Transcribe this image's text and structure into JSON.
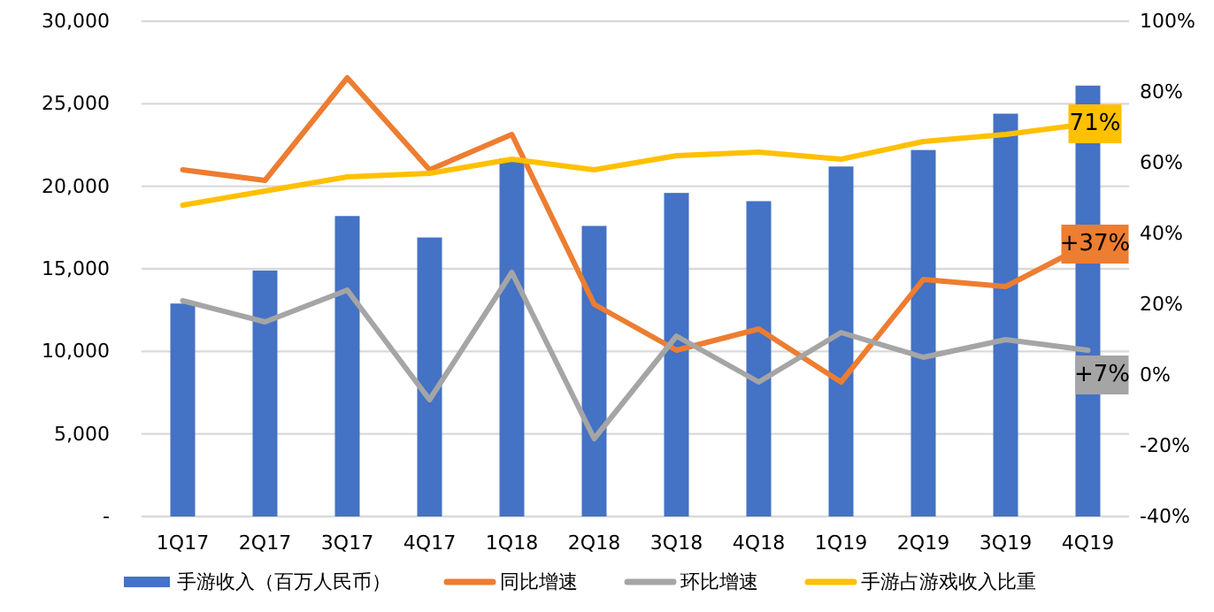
{
  "chart_data": {
    "type": "bar",
    "categories": [
      "1Q17",
      "2Q17",
      "3Q17",
      "4Q17",
      "1Q18",
      "2Q18",
      "3Q18",
      "4Q18",
      "1Q19",
      "2Q19",
      "3Q19",
      "4Q19"
    ],
    "series": [
      {
        "name": "手游收入（百万人民币）",
        "color": "#4472c4",
        "values": [
          12900,
          14900,
          18200,
          16900,
          21700,
          17600,
          19600,
          19100,
          21200,
          22200,
          24400,
          26100
        ]
      },
      {
        "name": "同比增速",
        "type": "line",
        "axis": "y2",
        "color": "#ed7d31",
        "values": [
          58,
          55,
          84,
          58,
          68,
          20,
          7,
          13,
          -2,
          27,
          25,
          37
        ],
        "value_labels": [
          null,
          null,
          null,
          null,
          null,
          null,
          null,
          null,
          null,
          null,
          null,
          "+37%"
        ]
      },
      {
        "name": "环比增速",
        "type": "line",
        "axis": "y2",
        "color": "#a5a5a5",
        "values": [
          21,
          15,
          24,
          -7,
          29,
          -18,
          11,
          -2,
          12,
          5,
          10,
          7
        ],
        "value_labels": [
          null,
          null,
          null,
          null,
          null,
          null,
          null,
          null,
          null,
          null,
          null,
          "+7%"
        ]
      },
      {
        "name": "手游占游戏收入比重",
        "type": "line",
        "axis": "y2",
        "color": "#ffc000",
        "values": [
          48,
          52,
          56,
          57,
          61,
          58,
          62,
          63,
          61,
          66,
          68,
          71
        ],
        "value_labels": [
          null,
          null,
          null,
          null,
          null,
          null,
          null,
          null,
          null,
          null,
          null,
          "71%"
        ]
      }
    ],
    "ylim": [
      0,
      30000
    ],
    "yticks": [
      {
        "value": 0,
        "label": "-"
      },
      {
        "value": 5000,
        "label": "5,000"
      },
      {
        "value": 10000,
        "label": "10,000"
      },
      {
        "value": 15000,
        "label": "15,000"
      },
      {
        "value": 20000,
        "label": "20,000"
      },
      {
        "value": 25000,
        "label": "25,000"
      },
      {
        "value": 30000,
        "label": "30,000"
      }
    ],
    "y2lim": [
      -40,
      100
    ],
    "y2ticks": [
      {
        "value": -40,
        "label": "-40%"
      },
      {
        "value": -20,
        "label": "-20%"
      },
      {
        "value": 0,
        "label": "0%"
      },
      {
        "value": 20,
        "label": "20%"
      },
      {
        "value": 40,
        "label": "40%"
      },
      {
        "value": 60,
        "label": "60%"
      },
      {
        "value": 80,
        "label": "80%"
      },
      {
        "value": 100,
        "label": "100%"
      }
    ],
    "grid": "y",
    "legend": "bottom"
  }
}
